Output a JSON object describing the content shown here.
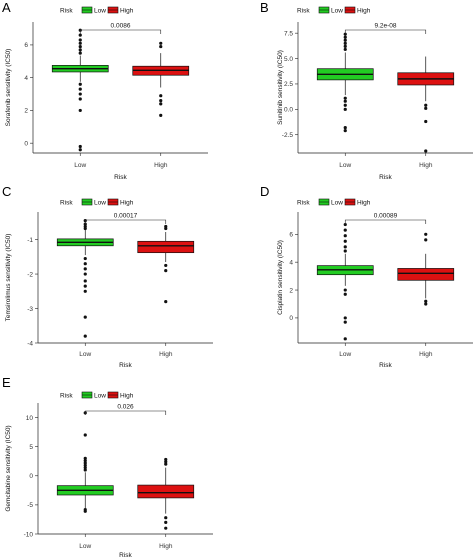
{
  "colors": {
    "low": "#22cc22",
    "high": "#dd1111",
    "median": "#111111"
  },
  "chart_data": [
    {
      "panel": "A",
      "type": "box",
      "legend_title": "Risk",
      "legend_entries": [
        "Low",
        "High"
      ],
      "legend_placement": "top",
      "xlabel": "Risk",
      "ylabel": "Sorafenib sensitivity (IC50)",
      "categories": [
        "Low",
        "High"
      ],
      "ylim": [
        -0.6,
        7.4
      ],
      "yticks": [
        0,
        2,
        4,
        6
      ],
      "pvalue": "0.0086",
      "boxes": [
        {
          "name": "Low",
          "q1": 4.35,
          "median": 4.55,
          "q3": 4.75,
          "whisker_low": 3.75,
          "whisker_high": 5.35,
          "outliers": [
            6.9,
            6.6,
            6.3,
            6.1,
            5.9,
            5.7,
            5.5,
            3.6,
            3.3,
            3.0,
            2.7,
            2.0,
            -0.2,
            -0.4
          ]
        },
        {
          "name": "High",
          "q1": 4.15,
          "median": 4.45,
          "q3": 4.7,
          "whisker_low": 3.4,
          "whisker_high": 5.5,
          "outliers": [
            6.1,
            5.9,
            2.9,
            2.6,
            2.4,
            1.7
          ]
        }
      ]
    },
    {
      "panel": "B",
      "type": "box",
      "legend_title": "Risk",
      "legend_entries": [
        "Low",
        "High"
      ],
      "legend_placement": "top",
      "xlabel": "Risk",
      "ylabel": "Sunitinib sensitivity (IC50)",
      "categories": [
        "Low",
        "High"
      ],
      "ylim": [
        -4.3,
        8.6
      ],
      "yticks": [
        -2.5,
        0.0,
        2.5,
        5.0,
        7.5
      ],
      "ytick_labels": [
        "-2.5",
        "0.0",
        "2.5",
        "5.0",
        "7.5"
      ],
      "pvalue": "9.2e-08",
      "boxes": [
        {
          "name": "Low",
          "q1": 2.9,
          "median": 3.45,
          "q3": 4.0,
          "whisker_low": 1.4,
          "whisker_high": 5.6,
          "outliers": [
            7.4,
            7.1,
            6.8,
            6.5,
            6.2,
            5.9,
            1.1,
            0.8,
            0.4,
            0.0,
            -1.8,
            -2.1
          ]
        },
        {
          "name": "High",
          "q1": 2.4,
          "median": 3.0,
          "q3": 3.6,
          "whisker_low": 0.8,
          "whisker_high": 5.2,
          "outliers": [
            0.4,
            0.1,
            -1.2,
            -4.1
          ]
        }
      ]
    },
    {
      "panel": "C",
      "type": "box",
      "legend_title": "Risk",
      "legend_entries": [
        "Low",
        "High"
      ],
      "legend_placement": "top",
      "xlabel": "Risk",
      "ylabel": "Temsirolimus sensitivity (IC50)",
      "categories": [
        "Low",
        "High"
      ],
      "ylim": [
        -4.0,
        -0.2
      ],
      "yticks": [
        -4,
        -3,
        -2,
        -1
      ],
      "pvalue": "0.00017",
      "boxes": [
        {
          "name": "Low",
          "q1": -1.18,
          "median": -1.08,
          "q3": -0.98,
          "whisker_low": -1.45,
          "whisker_high": -0.72,
          "outliers": [
            -0.45,
            -0.55,
            -0.62,
            -0.68,
            -1.55,
            -1.7,
            -1.85,
            -2.0,
            -2.2,
            -2.35,
            -2.5,
            -3.25,
            -3.8
          ]
        },
        {
          "name": "High",
          "q1": -1.38,
          "median": -1.18,
          "q3": -1.05,
          "whisker_low": -1.65,
          "whisker_high": -0.78,
          "outliers": [
            -0.62,
            -0.68,
            -1.75,
            -1.9,
            -2.8
          ]
        }
      ]
    },
    {
      "panel": "D",
      "type": "box",
      "legend_title": "Risk",
      "legend_entries": [
        "Low",
        "High"
      ],
      "legend_placement": "top",
      "xlabel": "Risk",
      "ylabel": "Cisplatin sensitivity (IC50)",
      "categories": [
        "Low",
        "High"
      ],
      "ylim": [
        -1.8,
        7.6
      ],
      "yticks": [
        0,
        2,
        4,
        6
      ],
      "pvalue": "0.00089",
      "boxes": [
        {
          "name": "Low",
          "q1": 3.1,
          "median": 3.45,
          "q3": 3.75,
          "whisker_low": 2.3,
          "whisker_high": 4.6,
          "outliers": [
            6.7,
            6.3,
            5.9,
            5.5,
            5.1,
            4.8,
            2.0,
            1.7,
            0.0,
            -0.3,
            -1.5
          ]
        },
        {
          "name": "High",
          "q1": 2.7,
          "median": 3.2,
          "q3": 3.55,
          "whisker_low": 1.4,
          "whisker_high": 4.6,
          "outliers": [
            6.0,
            5.6,
            1.2,
            1.0
          ]
        }
      ]
    },
    {
      "panel": "E",
      "type": "box",
      "legend_title": "Risk",
      "legend_entries": [
        "Low",
        "High"
      ],
      "legend_placement": "top",
      "xlabel": "Risk",
      "ylabel": "Gemcitabine sensitivity (IC50)",
      "categories": [
        "Low",
        "High"
      ],
      "ylim": [
        -10.0,
        12.5
      ],
      "yticks": [
        -10,
        -5,
        0,
        5,
        10
      ],
      "pvalue": "0.026",
      "boxes": [
        {
          "name": "Low",
          "q1": -3.3,
          "median": -2.5,
          "q3": -1.7,
          "whisker_low": -5.6,
          "whisker_high": 0.6,
          "outliers": [
            10.8,
            7.0,
            3.0,
            2.6,
            2.2,
            1.8,
            1.4,
            1.0,
            -5.8,
            -6.1
          ]
        },
        {
          "name": "High",
          "q1": -3.8,
          "median": -2.9,
          "q3": -1.6,
          "whisker_low": -6.5,
          "whisker_high": 1.4,
          "outliers": [
            2.8,
            2.4,
            2.0,
            -7.2,
            -8.0,
            -9.0
          ]
        }
      ]
    }
  ]
}
